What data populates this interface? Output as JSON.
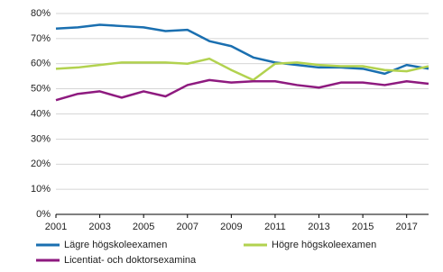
{
  "chart_data": {
    "type": "line",
    "x": [
      2001,
      2002,
      2003,
      2004,
      2005,
      2006,
      2007,
      2008,
      2009,
      2010,
      2011,
      2012,
      2013,
      2014,
      2015,
      2016,
      2017,
      2018
    ],
    "series": [
      {
        "name": "Lägre högskoleexamen",
        "color": "#1a6fb0",
        "values": [
          74,
          74.5,
          75.5,
          75,
          74.5,
          73,
          73.5,
          69,
          67,
          62.5,
          60.5,
          59.5,
          58.5,
          58.5,
          58,
          56,
          59.5,
          58
        ]
      },
      {
        "name": "Högre högskoleexamen",
        "color": "#b2d24f",
        "values": [
          58,
          58.5,
          59.5,
          60.5,
          60.5,
          60.5,
          60,
          62,
          57.5,
          53.5,
          60,
          60.5,
          59.5,
          59,
          59,
          57.5,
          57,
          59
        ]
      },
      {
        "name": "Licentiat- och doktorsexamina",
        "color": "#8e1a7f",
        "values": [
          45.5,
          48,
          49,
          46.5,
          49,
          47,
          51.5,
          53.5,
          52.5,
          53,
          53,
          51.5,
          50.5,
          52.5,
          52.5,
          51.5,
          53,
          52
        ]
      }
    ],
    "xlim": [
      2001,
      2018
    ],
    "xticks": [
      2001,
      2003,
      2005,
      2007,
      2009,
      2011,
      2013,
      2015,
      2017
    ],
    "ylim": [
      0,
      80
    ],
    "yticks": [
      {
        "value": 0,
        "label": "0%"
      },
      {
        "value": 10,
        "label": "10%"
      },
      {
        "value": 20,
        "label": "20%"
      },
      {
        "value": 30,
        "label": "30%"
      },
      {
        "value": 40,
        "label": "40%"
      },
      {
        "value": 50,
        "label": "50%"
      },
      {
        "value": 60,
        "label": "60%"
      },
      {
        "value": 70,
        "label": "70%"
      },
      {
        "value": 80,
        "label": "80%"
      }
    ],
    "grid": true
  }
}
